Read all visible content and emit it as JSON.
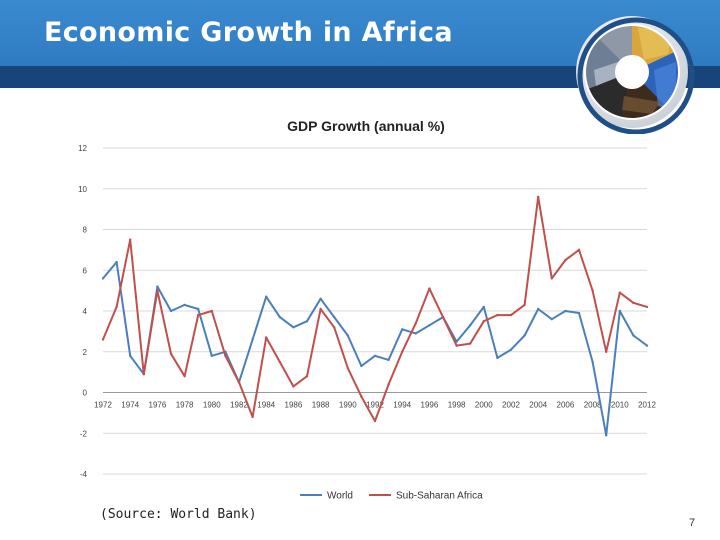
{
  "slide": {
    "title": "Economic Growth in Africa",
    "source_note": "(Source: World Bank)",
    "page_number": "7"
  },
  "colors": {
    "header": "#2f7bc2",
    "header_strip": "#17457a",
    "world_series": "#4a7fbb",
    "ssa_series": "#c0504d"
  },
  "chart_data": {
    "type": "line",
    "title": "GDP Growth (annual %)",
    "xlabel": "",
    "ylabel": "",
    "ylim": [
      -4,
      12
    ],
    "yticks": [
      "12",
      "10",
      "8",
      "6",
      "4",
      "2",
      "0",
      "-2",
      "-4"
    ],
    "ytick_values": [
      12,
      10,
      8,
      6,
      4,
      2,
      0,
      -2,
      -4
    ],
    "x": [
      1972,
      1973,
      1974,
      1975,
      1976,
      1977,
      1978,
      1979,
      1980,
      1981,
      1982,
      1983,
      1984,
      1985,
      1986,
      1987,
      1988,
      1989,
      1990,
      1991,
      1992,
      1993,
      1994,
      1995,
      1996,
      1997,
      1998,
      1999,
      2000,
      2001,
      2002,
      2003,
      2004,
      2005,
      2006,
      2007,
      2008,
      2009,
      2010,
      2011,
      2012
    ],
    "xtick_labels": [
      "1972",
      "1974",
      "1976",
      "1978",
      "1980",
      "1982",
      "1984",
      "1986",
      "1988",
      "1990",
      "1992",
      "1994",
      "1996",
      "1998",
      "2000",
      "2002",
      "2004",
      "2006",
      "2008",
      "2010",
      "2012"
    ],
    "grid": true,
    "legend_position": "bottom",
    "series": [
      {
        "name": "World",
        "color": "#4a7fbb",
        "values": [
          5.6,
          6.4,
          1.8,
          0.9,
          5.2,
          4.0,
          4.3,
          4.1,
          1.8,
          2.0,
          0.5,
          2.6,
          4.7,
          3.7,
          3.2,
          3.5,
          4.6,
          3.7,
          2.8,
          1.3,
          1.8,
          1.6,
          3.1,
          2.9,
          3.3,
          3.7,
          2.5,
          3.3,
          4.2,
          1.7,
          2.1,
          2.8,
          4.1,
          3.6,
          4.0,
          3.9,
          1.5,
          -2.1,
          4.0,
          2.8,
          2.3
        ]
      },
      {
        "name": "Sub-Saharan Africa",
        "color": "#c0504d",
        "values": [
          2.6,
          4.2,
          7.5,
          0.9,
          5.0,
          1.9,
          0.8,
          3.8,
          4.0,
          1.8,
          0.5,
          -1.2,
          2.7,
          1.5,
          0.3,
          0.8,
          4.1,
          3.2,
          1.2,
          -0.2,
          -1.4,
          0.4,
          2.0,
          3.4,
          5.1,
          3.7,
          2.3,
          2.4,
          3.5,
          3.8,
          3.8,
          4.3,
          9.6,
          5.6,
          6.5,
          7.0,
          5.0,
          2.0,
          4.9,
          4.4,
          4.2
        ]
      }
    ]
  }
}
